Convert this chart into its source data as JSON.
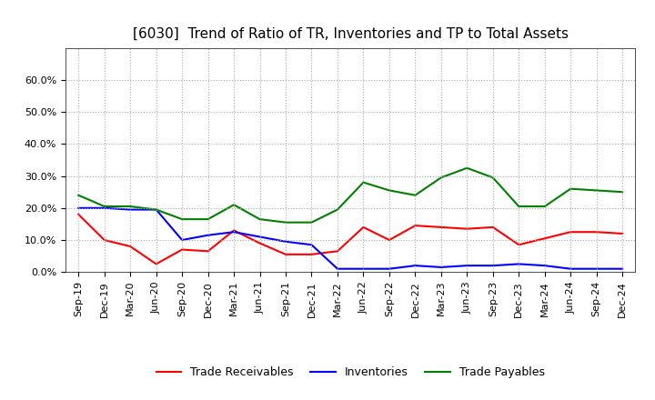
{
  "title": "[6030]  Trend of Ratio of TR, Inventories and TP to Total Assets",
  "x_labels": [
    "Sep-19",
    "Dec-19",
    "Mar-20",
    "Jun-20",
    "Sep-20",
    "Dec-20",
    "Mar-21",
    "Jun-21",
    "Sep-21",
    "Dec-21",
    "Mar-22",
    "Jun-22",
    "Sep-22",
    "Dec-22",
    "Mar-23",
    "Jun-23",
    "Sep-23",
    "Dec-23",
    "Mar-24",
    "Jun-24",
    "Sep-24",
    "Dec-24"
  ],
  "trade_receivables": [
    0.18,
    0.1,
    0.08,
    0.025,
    0.07,
    0.065,
    0.13,
    0.09,
    0.055,
    0.055,
    0.065,
    0.14,
    0.1,
    0.145,
    0.14,
    0.135,
    0.14,
    0.085,
    0.105,
    0.125,
    0.125,
    0.12
  ],
  "inventories": [
    0.2,
    0.2,
    0.195,
    0.195,
    0.1,
    0.115,
    0.125,
    0.11,
    0.095,
    0.085,
    0.01,
    0.01,
    0.01,
    0.02,
    0.015,
    0.02,
    0.02,
    0.025,
    0.02,
    0.01,
    0.01,
    0.01
  ],
  "trade_payables": [
    0.24,
    0.205,
    0.205,
    0.195,
    0.165,
    0.165,
    0.21,
    0.165,
    0.155,
    0.155,
    0.195,
    0.28,
    0.255,
    0.24,
    0.295,
    0.325,
    0.295,
    0.205,
    0.205,
    0.26,
    0.255,
    0.25
  ],
  "tr_color": "#FF0000",
  "inv_color": "#0000FF",
  "tp_color": "#008000",
  "ylim": [
    0.0,
    0.7
  ],
  "yticks": [
    0.0,
    0.1,
    0.2,
    0.3,
    0.4,
    0.5,
    0.6
  ],
  "background_color": "#FFFFFF",
  "grid_color": "#AAAAAA",
  "legend_labels": [
    "Trade Receivables",
    "Inventories",
    "Trade Payables"
  ],
  "title_fontsize": 11,
  "tick_fontsize": 8,
  "legend_fontsize": 9
}
